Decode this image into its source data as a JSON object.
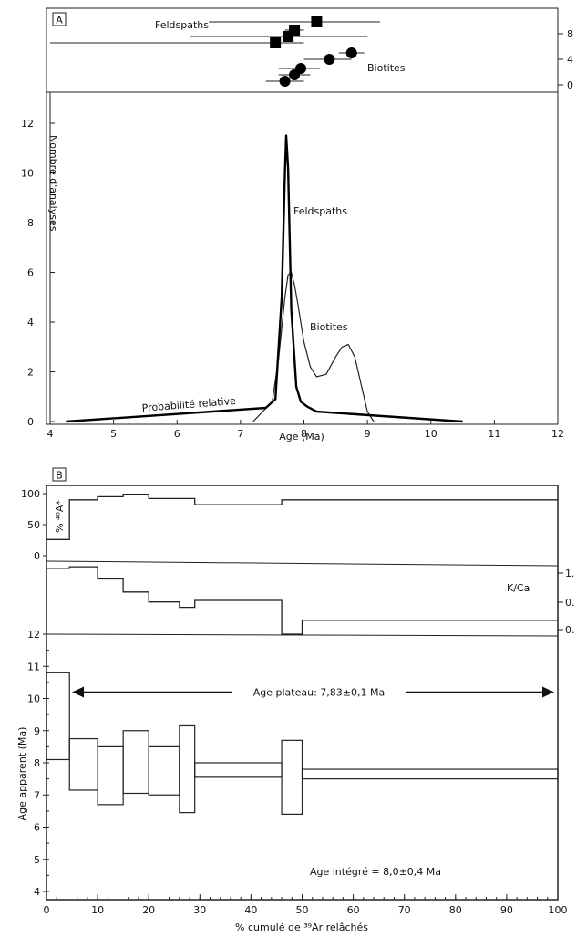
{
  "panel_a": {
    "label": "A",
    "ylabel": "Nombre d'analyses",
    "xlabel": "Age (Ma)",
    "feldspaths_label": "Feldspaths",
    "biotites_label": "Biotites",
    "probability_label": "Probabilité relative",
    "inset_feldspaths_label": "Feldspaths",
    "inset_biotites_label": "Biotites",
    "inset_right_ticks": [
      "8",
      "4",
      "0"
    ]
  },
  "panel_b": {
    "label": "B",
    "ar_ylabel": "% ⁴⁰A*",
    "kca_label": "K/Ca",
    "kca_ticks": [
      "1.",
      "0.",
      "0."
    ],
    "age_ylabel": "Age apparent (Ma)",
    "plateau_text": "Age plateau: 7,83±0,1 Ma",
    "integrated_text": "Age intégré = 8,0±0,4 Ma",
    "xlabel": "% cumulé de ³⁹Ar relâchés"
  },
  "chart_data": [
    {
      "type": "line",
      "panel": "A",
      "xlabel": "Age (Ma)",
      "ylabel": "Nombre d'analyses",
      "xlim": [
        4,
        12
      ],
      "ylim": [
        0,
        12
      ],
      "xticks": [
        4,
        5,
        6,
        7,
        8,
        9,
        10,
        11,
        12
      ],
      "yticks": [
        0,
        2,
        4,
        6,
        8,
        10,
        12
      ],
      "series": [
        {
          "name": "Feldspaths",
          "x": [
            4.25,
            7.4,
            7.55,
            7.65,
            7.7,
            7.72,
            7.75,
            7.8,
            7.88,
            7.95,
            8.05,
            8.2,
            10.5
          ],
          "y": [
            0.0,
            0.55,
            0.9,
            5.0,
            10.0,
            11.5,
            10.2,
            4.5,
            1.4,
            0.8,
            0.6,
            0.4,
            0.0
          ]
        },
        {
          "name": "Biotites",
          "x": [
            7.2,
            7.5,
            7.6,
            7.7,
            7.75,
            7.8,
            7.85,
            7.9,
            8.0,
            8.1,
            8.2,
            8.35,
            8.5,
            8.6,
            8.7,
            8.8,
            8.9,
            9.0,
            9.1
          ],
          "y": [
            0.0,
            0.8,
            2.5,
            5.0,
            5.9,
            6.0,
            5.5,
            4.8,
            3.2,
            2.2,
            1.8,
            1.9,
            2.6,
            3.0,
            3.1,
            2.6,
            1.5,
            0.4,
            0.0
          ]
        },
        {
          "name": "Probabilité relative"
        }
      ]
    },
    {
      "type": "scatter",
      "panel": "A-inset",
      "series": [
        {
          "name": "Feldspaths",
          "x": [
            8.2,
            7.85,
            7.75,
            7.55
          ],
          "y": [
            8,
            7,
            6,
            5
          ],
          "err_low": [
            6.5,
            7.7,
            6.2,
            4.0
          ],
          "err_high": [
            9.2,
            8.0,
            9.0,
            8.0
          ]
        },
        {
          "name": "Biotites",
          "x": [
            8.75,
            8.4,
            7.95,
            7.85,
            7.7
          ],
          "y": [
            4,
            3,
            2,
            1,
            0
          ],
          "err_low": [
            8.55,
            8.0,
            7.6,
            7.6,
            7.4
          ],
          "err_high": [
            8.95,
            8.75,
            8.25,
            8.1,
            8.0
          ]
        }
      ]
    },
    {
      "type": "step",
      "panel": "B-%40Ar*",
      "xlim": [
        0,
        100
      ],
      "ylim": [
        0,
        100
      ],
      "yticks": [
        0,
        50,
        100
      ],
      "steps": [
        {
          "x0": 0,
          "x1": 4.5,
          "y": 26
        },
        {
          "x0": 4.5,
          "x1": 10,
          "y": 90
        },
        {
          "x0": 10,
          "x1": 15,
          "y": 95
        },
        {
          "x0": 15,
          "x1": 20,
          "y": 99
        },
        {
          "x0": 20,
          "x1": 29,
          "y": 92
        },
        {
          "x0": 29,
          "x1": 46,
          "y": 82
        },
        {
          "x0": 46,
          "x1": 100,
          "y": 90
        }
      ]
    },
    {
      "type": "step",
      "panel": "B-K/Ca",
      "xlim": [
        0,
        100
      ],
      "steps": [
        {
          "x0": 0,
          "x1": 4.5,
          "y": 0.86
        },
        {
          "x0": 4.5,
          "x1": 10,
          "y": 0.88
        },
        {
          "x0": 10,
          "x1": 15,
          "y": 0.72
        },
        {
          "x0": 15,
          "x1": 20,
          "y": 0.55
        },
        {
          "x0": 20,
          "x1": 26,
          "y": 0.42
        },
        {
          "x0": 26,
          "x1": 29,
          "y": 0.35
        },
        {
          "x0": 29,
          "x1": 46,
          "y": 0.44
        },
        {
          "x0": 46,
          "x1": 50,
          "y": 0.0
        },
        {
          "x0": 50,
          "x1": 100,
          "y": 0.18
        }
      ]
    },
    {
      "type": "bar",
      "panel": "B-age-spectrum",
      "xlabel": "% cumulé de ³⁹Ar relâchés",
      "ylabel": "Age apparent (Ma)",
      "xlim": [
        0,
        100
      ],
      "ylim": [
        4,
        12
      ],
      "xticks": [
        0,
        10,
        20,
        30,
        40,
        50,
        60,
        70,
        80,
        90,
        100
      ],
      "yticks": [
        4,
        5,
        6,
        7,
        8,
        9,
        10,
        11,
        12
      ],
      "steps": [
        {
          "x0": 0,
          "x1": 4.5,
          "low": 8.1,
          "high": 10.8
        },
        {
          "x0": 4.5,
          "x1": 10,
          "low": 7.15,
          "high": 8.75
        },
        {
          "x0": 10,
          "x1": 15,
          "low": 6.7,
          "high": 8.5
        },
        {
          "x0": 15,
          "x1": 20,
          "low": 7.05,
          "high": 9.0
        },
        {
          "x0": 20,
          "x1": 26,
          "low": 7.0,
          "high": 8.5
        },
        {
          "x0": 26,
          "x1": 29,
          "low": 6.45,
          "high": 9.15
        },
        {
          "x0": 29,
          "x1": 46,
          "low": 7.55,
          "high": 8.0
        },
        {
          "x0": 46,
          "x1": 50,
          "low": 6.4,
          "high": 8.7
        },
        {
          "x0": 50,
          "x1": 100,
          "low": 7.5,
          "high": 7.8
        }
      ],
      "plateau": {
        "x0": 5,
        "x1": 100,
        "y": 10.2,
        "label": "Age plateau: 7,83±0,1 Ma"
      },
      "integrated_label": "Age intégré = 8,0±0,4 Ma"
    }
  ]
}
